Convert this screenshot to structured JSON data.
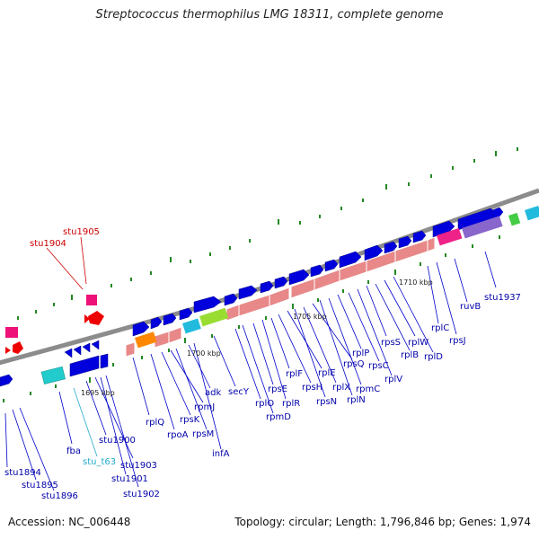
{
  "title": "Streptococcus thermophilus LMG 18311, complete genome",
  "accession": "Accession: NC_006448",
  "summary": "Topology: circular; Length: 1,796,846 bp; Genes: 1,974",
  "colors": {
    "backbone": "#8a8a8a",
    "forward_gene": "#0000cc",
    "rrna": "#e88080",
    "highlight_gene": "#dd0000",
    "highlight_pink": "#ee1177",
    "cyan": "#22cccc",
    "teal": "#33bbbb",
    "orange": "#ff8800",
    "green": "#99dd33",
    "lavender": "#8866cc",
    "label_blue": "#0000aa",
    "label_red": "#cc0000",
    "label_cyan": "#22aacc",
    "tick_green": "#228822"
  },
  "ticks": [
    {
      "label": "1695 kbp"
    },
    {
      "label": "1700 kbp"
    },
    {
      "label": "1705 kbp"
    },
    {
      "label": "1710 kbp"
    }
  ],
  "labels_blue": [
    "stu1894",
    "stu1895",
    "stu1896",
    "fba",
    "stu1900",
    "stu1903",
    "stu1901",
    "stu1902",
    "rplQ",
    "rpoA",
    "rpsK",
    "rpmJ",
    "rpsM",
    "adk",
    "infA",
    "secY",
    "rplO",
    "rpmD",
    "rpsE",
    "rplR",
    "rplF",
    "rpsH",
    "rplE",
    "rpsN",
    "rplX",
    "rpsQ",
    "rplN",
    "rpmC",
    "rplP",
    "rpsC",
    "rplV",
    "rpsS",
    "rplB",
    "rplW",
    "rplD",
    "rplC",
    "rpsJ",
    "ruvB",
    "stu1937"
  ],
  "labels_red": [
    "stu1904",
    "stu1905"
  ],
  "labels_cyan": [
    "stu_t63"
  ]
}
